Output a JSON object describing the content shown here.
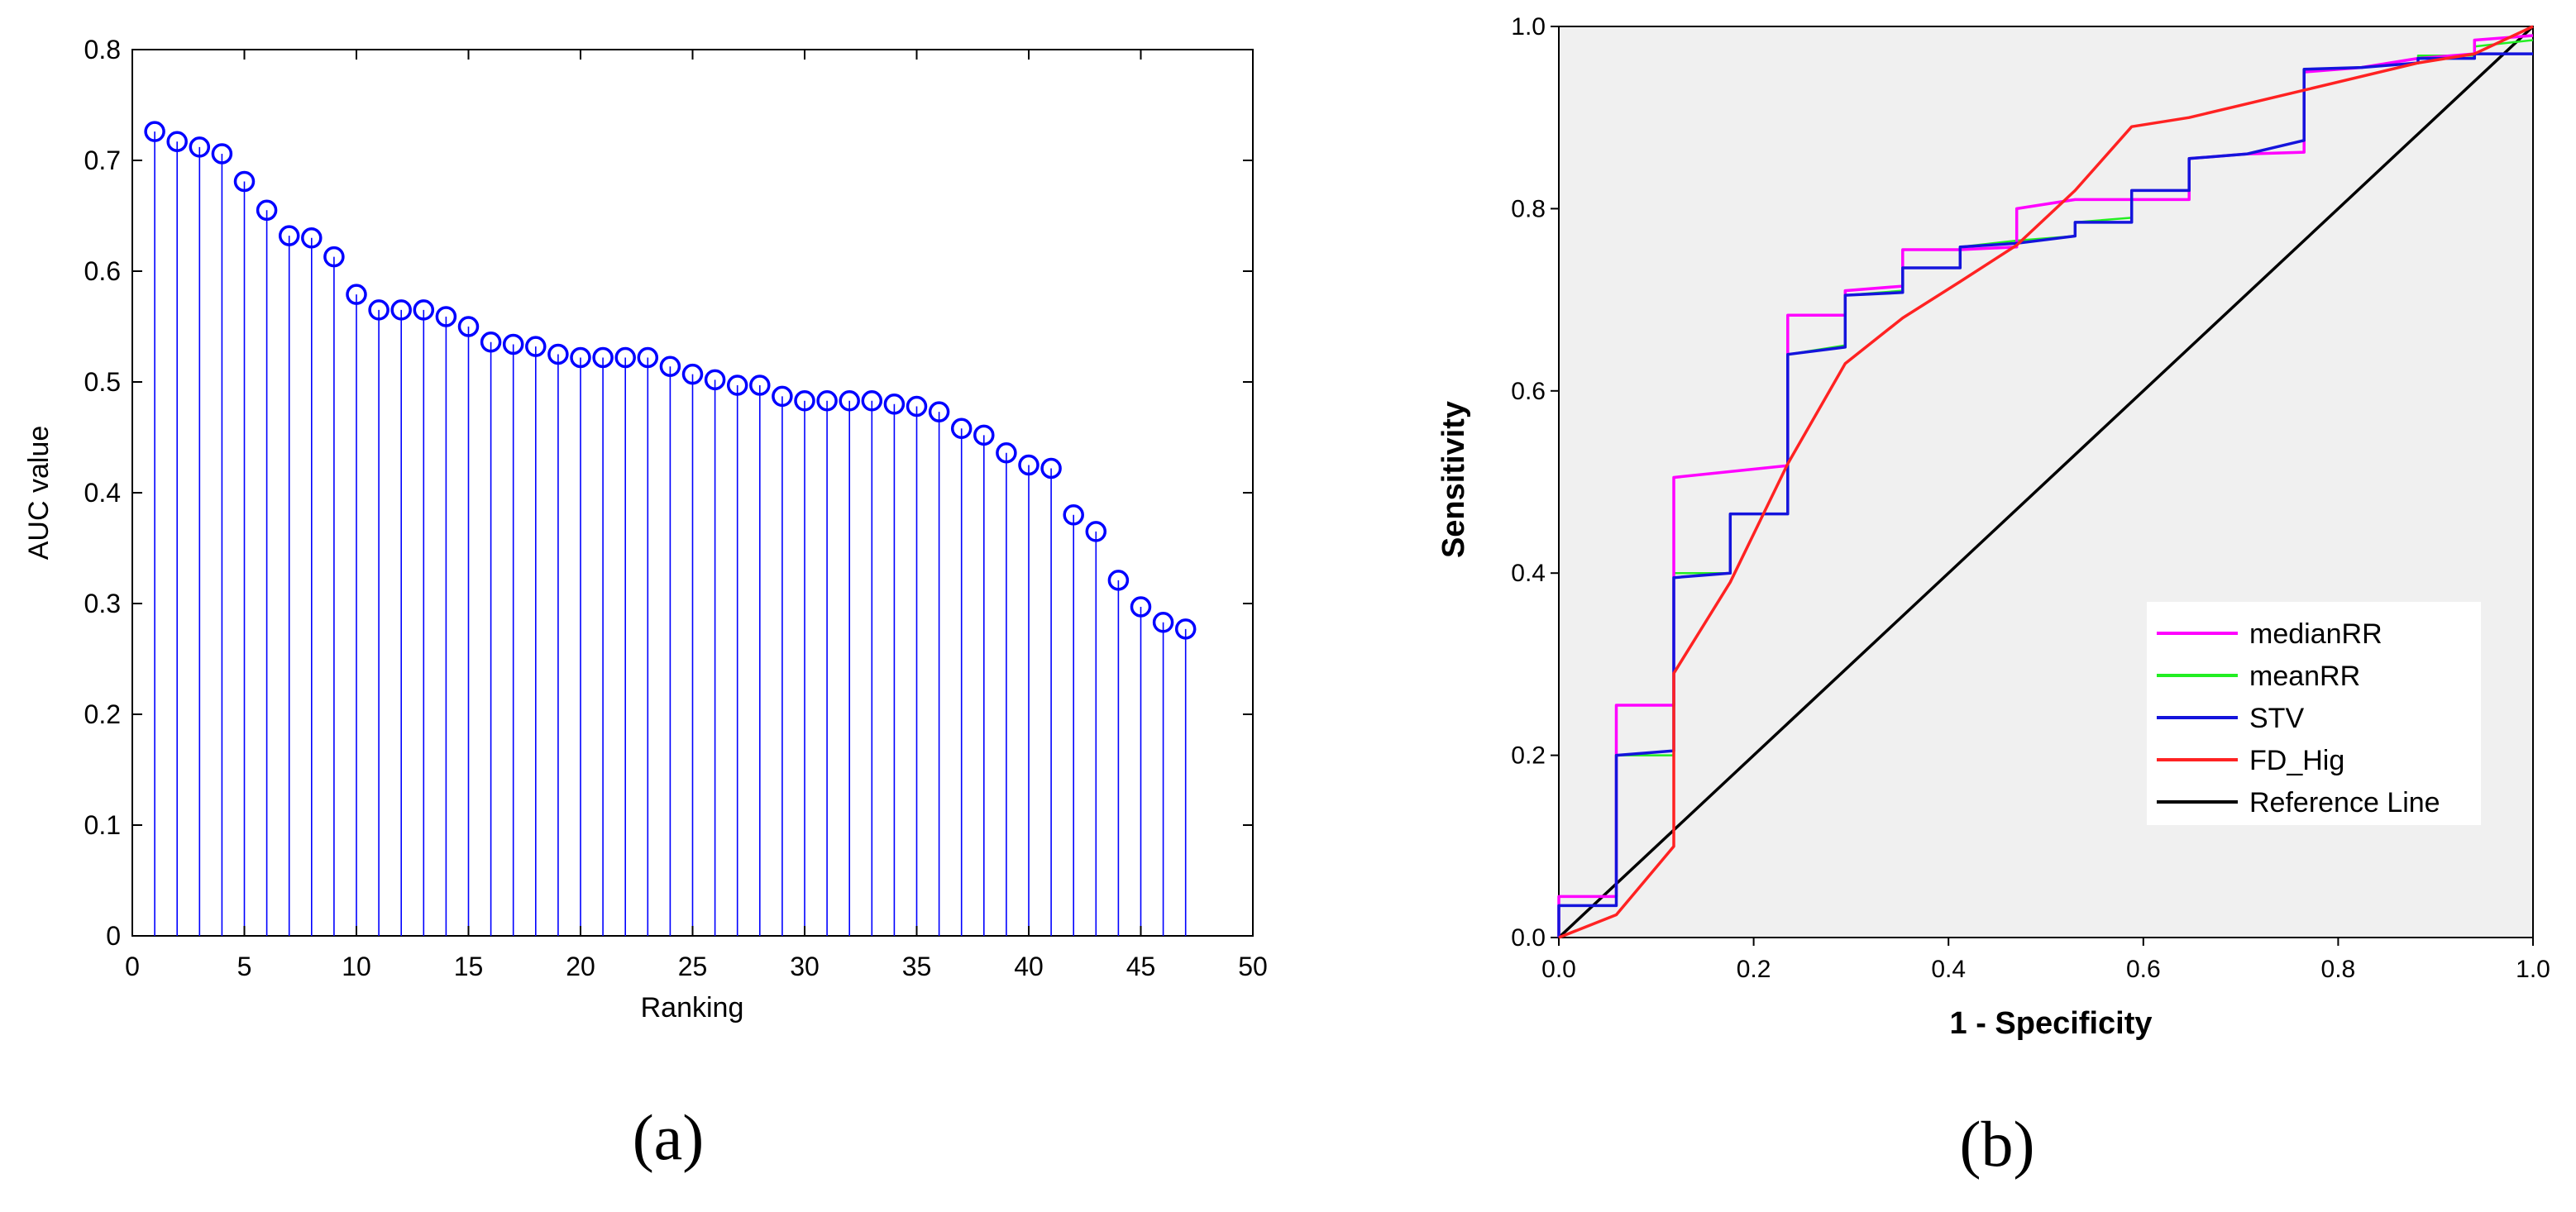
{
  "chart_data": [
    {
      "type": "stem",
      "panel_label": "(a)",
      "title": "",
      "xlabel": "Ranking",
      "ylabel": "AUC value",
      "xlim": [
        0,
        50
      ],
      "ylim": [
        0,
        0.8
      ],
      "xticks": [
        "0",
        "5",
        "10",
        "15",
        "20",
        "25",
        "30",
        "35",
        "40",
        "45",
        "50"
      ],
      "yticks": [
        "0",
        "0.1",
        "0.2",
        "0.3",
        "0.4",
        "0.5",
        "0.6",
        "0.7",
        "0.8"
      ],
      "color": "#0000ff",
      "x": [
        1,
        2,
        3,
        4,
        5,
        6,
        7,
        8,
        9,
        10,
        11,
        12,
        13,
        14,
        15,
        16,
        17,
        18,
        19,
        20,
        21,
        22,
        23,
        24,
        25,
        26,
        27,
        28,
        29,
        30,
        31,
        32,
        33,
        34,
        35,
        36,
        37,
        38,
        39,
        40,
        41,
        42,
        43,
        44,
        45,
        46,
        47
      ],
      "values": [
        0.726,
        0.717,
        0.712,
        0.706,
        0.681,
        0.655,
        0.632,
        0.63,
        0.613,
        0.579,
        0.565,
        0.565,
        0.565,
        0.559,
        0.55,
        0.536,
        0.534,
        0.532,
        0.525,
        0.522,
        0.522,
        0.522,
        0.522,
        0.514,
        0.507,
        0.502,
        0.497,
        0.497,
        0.487,
        0.483,
        0.483,
        0.483,
        0.483,
        0.48,
        0.478,
        0.473,
        0.458,
        0.452,
        0.436,
        0.425,
        0.422,
        0.38,
        0.365,
        0.321,
        0.297,
        0.283,
        0.277
      ]
    },
    {
      "type": "line",
      "panel_label": "(b)",
      "title": "",
      "xlabel": "1 - Specificity",
      "ylabel": "Sensitivity",
      "xlim": [
        0,
        1
      ],
      "ylim": [
        0,
        1
      ],
      "xticks": [
        "0.0",
        "0.2",
        "0.4",
        "0.6",
        "0.8",
        "1.0"
      ],
      "yticks": [
        "0.0",
        "0.2",
        "0.4",
        "0.6",
        "0.8",
        "1.0"
      ],
      "background": "#f0f0f0",
      "legend_position": "lower-right",
      "series": [
        {
          "name": "Reference Line",
          "color": "#000000",
          "points": [
            [
              0,
              0
            ],
            [
              1,
              1
            ]
          ]
        },
        {
          "name": "meanRR",
          "color": "#22ee22",
          "points": [
            [
              0,
              0
            ],
            [
              0,
              0.035
            ],
            [
              0.059,
              0.035
            ],
            [
              0.059,
              0.2
            ],
            [
              0.118,
              0.2
            ],
            [
              0.118,
              0.4
            ],
            [
              0.176,
              0.4
            ],
            [
              0.176,
              0.465
            ],
            [
              0.235,
              0.465
            ],
            [
              0.235,
              0.64
            ],
            [
              0.294,
              0.65
            ],
            [
              0.294,
              0.705
            ],
            [
              0.353,
              0.71
            ],
            [
              0.353,
              0.735
            ],
            [
              0.412,
              0.735
            ],
            [
              0.412,
              0.758
            ],
            [
              0.47,
              0.765
            ],
            [
              0.53,
              0.77
            ],
            [
              0.53,
              0.785
            ],
            [
              0.588,
              0.79
            ],
            [
              0.588,
              0.82
            ],
            [
              0.647,
              0.82
            ],
            [
              0.647,
              0.855
            ],
            [
              0.706,
              0.86
            ],
            [
              0.765,
              0.875
            ],
            [
              0.765,
              0.95
            ],
            [
              0.824,
              0.955
            ],
            [
              0.882,
              0.96
            ],
            [
              0.882,
              0.968
            ],
            [
              0.94,
              0.968
            ],
            [
              0.94,
              0.978
            ],
            [
              1,
              0.985
            ]
          ]
        },
        {
          "name": "medianRR",
          "color": "#ff00ff",
          "points": [
            [
              0,
              0
            ],
            [
              0,
              0.045
            ],
            [
              0.059,
              0.045
            ],
            [
              0.059,
              0.255
            ],
            [
              0.118,
              0.255
            ],
            [
              0.118,
              0.505
            ],
            [
              0.235,
              0.518
            ],
            [
              0.235,
              0.683
            ],
            [
              0.294,
              0.683
            ],
            [
              0.294,
              0.71
            ],
            [
              0.353,
              0.715
            ],
            [
              0.353,
              0.755
            ],
            [
              0.412,
              0.755
            ],
            [
              0.47,
              0.758
            ],
            [
              0.47,
              0.8
            ],
            [
              0.53,
              0.81
            ],
            [
              0.588,
              0.81
            ],
            [
              0.647,
              0.81
            ],
            [
              0.647,
              0.855
            ],
            [
              0.706,
              0.86
            ],
            [
              0.765,
              0.862
            ],
            [
              0.765,
              0.95
            ],
            [
              0.824,
              0.955
            ],
            [
              0.882,
              0.965
            ],
            [
              0.94,
              0.97
            ],
            [
              0.94,
              0.985
            ],
            [
              1,
              0.99
            ]
          ]
        },
        {
          "name": "STV",
          "color": "#1414dc",
          "points": [
            [
              0,
              0
            ],
            [
              0,
              0.035
            ],
            [
              0.059,
              0.035
            ],
            [
              0.059,
              0.2
            ],
            [
              0.118,
              0.205
            ],
            [
              0.118,
              0.395
            ],
            [
              0.176,
              0.4
            ],
            [
              0.176,
              0.465
            ],
            [
              0.235,
              0.465
            ],
            [
              0.235,
              0.64
            ],
            [
              0.294,
              0.648
            ],
            [
              0.294,
              0.705
            ],
            [
              0.353,
              0.708
            ],
            [
              0.353,
              0.735
            ],
            [
              0.412,
              0.735
            ],
            [
              0.412,
              0.758
            ],
            [
              0.47,
              0.762
            ],
            [
              0.53,
              0.77
            ],
            [
              0.53,
              0.785
            ],
            [
              0.588,
              0.785
            ],
            [
              0.588,
              0.82
            ],
            [
              0.647,
              0.82
            ],
            [
              0.647,
              0.855
            ],
            [
              0.706,
              0.86
            ],
            [
              0.765,
              0.875
            ],
            [
              0.765,
              0.953
            ],
            [
              0.824,
              0.955
            ],
            [
              0.882,
              0.96
            ],
            [
              0.882,
              0.965
            ],
            [
              0.94,
              0.965
            ],
            [
              0.94,
              0.97
            ],
            [
              1,
              0.97
            ]
          ]
        },
        {
          "name": "FD_Hig",
          "color": "#ff2222",
          "points": [
            [
              0,
              0
            ],
            [
              0.059,
              0.025
            ],
            [
              0.118,
              0.1
            ],
            [
              0.118,
              0.29
            ],
            [
              0.176,
              0.39
            ],
            [
              0.235,
              0.52
            ],
            [
              0.294,
              0.63
            ],
            [
              0.353,
              0.68
            ],
            [
              0.412,
              0.72
            ],
            [
              0.47,
              0.76
            ],
            [
              0.53,
              0.82
            ],
            [
              0.588,
              0.89
            ],
            [
              0.647,
              0.9
            ],
            [
              0.765,
              0.93
            ],
            [
              0.882,
              0.96
            ],
            [
              0.94,
              0.97
            ],
            [
              1,
              1.0
            ]
          ]
        }
      ],
      "legend_order": [
        "medianRR",
        "meanRR",
        "STV",
        "FD_Hig",
        "Reference Line"
      ]
    }
  ]
}
